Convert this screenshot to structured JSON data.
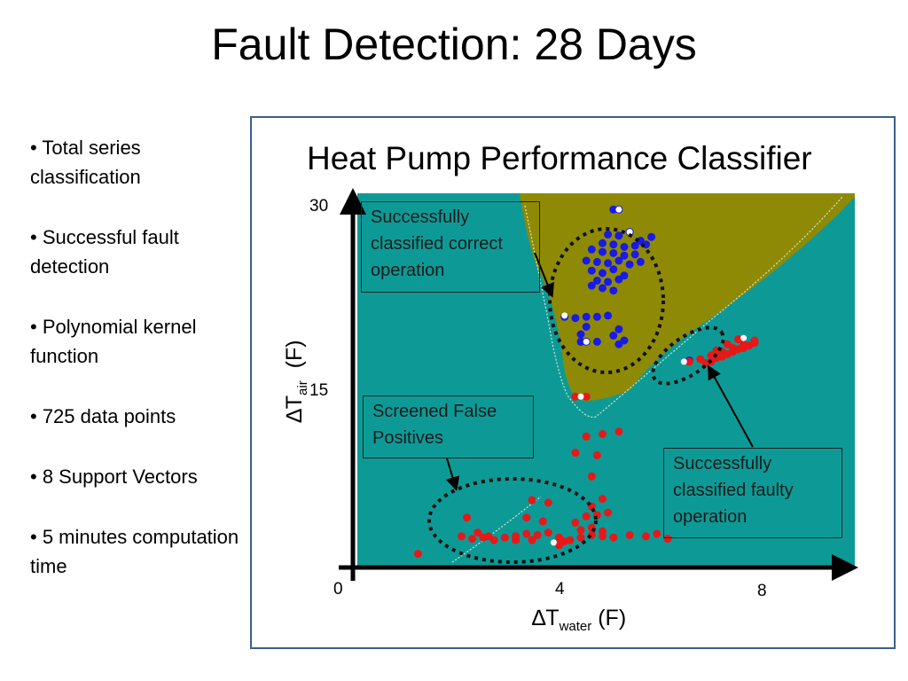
{
  "slide": {
    "title": "Fault Detection: 28 Days",
    "bullets": [
      "• Total series classification",
      "• Successful fault detection",
      "• Polynomial kernel function",
      "• 725 data points",
      "• 8 Support Vectors",
      "• 5 minutes computation time"
    ]
  },
  "colors": {
    "background_region": "#0d9a96",
    "correct_region": "#8e8a06",
    "correct_class": "#1a1ae6",
    "fault_class": "#e61818",
    "frame_border": "#3b5f8f"
  },
  "chart_data": {
    "type": "scatter",
    "title": "Heat Pump Performance Classifier",
    "xlabel": {
      "symbol": "∆T",
      "sub": "water",
      "unit": "(F)"
    },
    "ylabel": {
      "symbol": "∆T",
      "sub": "air",
      "unit": "(F)"
    },
    "xlim": [
      0,
      10
    ],
    "ylim": [
      0,
      30
    ],
    "x_ticks": [
      "0",
      "4",
      "8"
    ],
    "y_ticks": [
      "30",
      "15"
    ],
    "grid": false,
    "legend": "none",
    "series": [
      {
        "class": "correct",
        "points": [
          [
            4.8,
            28.7
          ],
          [
            4.9,
            28.7
          ],
          [
            4.7,
            26.7
          ],
          [
            4.9,
            26.6
          ],
          [
            5.1,
            26.9
          ],
          [
            5.3,
            26.2
          ],
          [
            5.5,
            26.5
          ],
          [
            4.6,
            26.0
          ],
          [
            4.8,
            25.9
          ],
          [
            5.0,
            25.7
          ],
          [
            5.2,
            25.8
          ],
          [
            5.4,
            25.9
          ],
          [
            4.4,
            25.5
          ],
          [
            4.6,
            25.3
          ],
          [
            4.8,
            25.2
          ],
          [
            5.0,
            25.0
          ],
          [
            5.2,
            25.1
          ],
          [
            4.3,
            24.6
          ],
          [
            4.5,
            24.5
          ],
          [
            4.7,
            24.4
          ],
          [
            4.9,
            24.6
          ],
          [
            5.1,
            24.3
          ],
          [
            5.3,
            24.5
          ],
          [
            4.4,
            23.8
          ],
          [
            4.6,
            23.6
          ],
          [
            4.8,
            23.9
          ],
          [
            5.0,
            23.4
          ],
          [
            4.5,
            23.0
          ],
          [
            4.7,
            22.9
          ],
          [
            4.9,
            23.1
          ],
          [
            4.6,
            22.4
          ],
          [
            4.8,
            22.2
          ],
          [
            4.4,
            22.6
          ],
          [
            3.9,
            20.1
          ],
          [
            4.1,
            20.0
          ],
          [
            4.3,
            20.1
          ],
          [
            4.5,
            20.1
          ],
          [
            4.7,
            20.2
          ],
          [
            4.3,
            19.3
          ],
          [
            4.2,
            18.7
          ],
          [
            4.2,
            18.1
          ],
          [
            4.3,
            18.1
          ],
          [
            4.5,
            18.1
          ],
          [
            4.8,
            18.6
          ],
          [
            5.0,
            18.2
          ],
          [
            4.9,
            17.9
          ],
          [
            4.9,
            19.1
          ],
          [
            6.2,
            16.6
          ]
        ]
      },
      {
        "class": "fault",
        "points": [
          [
            4.1,
            13.7
          ],
          [
            4.3,
            13.7
          ],
          [
            4.3,
            10.5
          ],
          [
            4.6,
            10.7
          ],
          [
            4.9,
            10.9
          ],
          [
            4.1,
            9.2
          ],
          [
            4.5,
            9.0
          ],
          [
            4.4,
            7.3
          ],
          [
            4.6,
            5.5
          ],
          [
            4.4,
            4.9
          ],
          [
            4.3,
            4.1
          ],
          [
            4.5,
            4.2
          ],
          [
            4.7,
            4.4
          ],
          [
            2.1,
            4.0
          ],
          [
            3.3,
            5.4
          ],
          [
            3.6,
            5.2
          ],
          [
            3.2,
            4.0
          ],
          [
            3.5,
            3.7
          ],
          [
            4.1,
            3.6
          ],
          [
            2.0,
            2.5
          ],
          [
            2.2,
            2.3
          ],
          [
            2.4,
            2.4
          ],
          [
            2.6,
            2.2
          ],
          [
            2.8,
            2.4
          ],
          [
            3.0,
            2.5
          ],
          [
            3.2,
            2.7
          ],
          [
            3.4,
            2.6
          ],
          [
            3.6,
            2.8
          ],
          [
            3.8,
            2.4
          ],
          [
            4.0,
            2.2
          ],
          [
            4.2,
            2.4
          ],
          [
            4.4,
            2.6
          ],
          [
            4.6,
            2.5
          ],
          [
            4.8,
            2.4
          ],
          [
            5.1,
            2.6
          ],
          [
            5.4,
            2.5
          ],
          [
            5.6,
            2.7
          ],
          [
            5.8,
            2.3
          ],
          [
            4.2,
            3.0
          ],
          [
            4.4,
            3.2
          ],
          [
            4.6,
            2.9
          ],
          [
            2.3,
            2.8
          ],
          [
            2.5,
            2.5
          ],
          [
            3.0,
            2.2
          ],
          [
            3.3,
            2.2
          ],
          [
            3.9,
            2.1
          ],
          [
            1.2,
            1.1
          ],
          [
            3.8,
            1.8
          ],
          [
            6.2,
            16.5
          ],
          [
            6.4,
            16.7
          ],
          [
            6.6,
            17.0
          ],
          [
            6.8,
            17.3
          ],
          [
            7.0,
            17.6
          ],
          [
            7.2,
            17.9
          ],
          [
            7.4,
            18.2
          ],
          [
            6.5,
            16.4
          ],
          [
            6.7,
            16.8
          ],
          [
            6.9,
            17.1
          ],
          [
            7.1,
            17.5
          ],
          [
            7.3,
            17.8
          ],
          [
            6.6,
            16.5
          ],
          [
            6.8,
            16.9
          ],
          [
            7.0,
            17.3
          ],
          [
            7.2,
            17.6
          ],
          [
            7.4,
            18.0
          ],
          [
            7.1,
            18.3
          ],
          [
            6.9,
            17.9
          ],
          [
            6.7,
            17.4
          ]
        ]
      }
    ],
    "support_vectors": [
      [
        3.9,
        20.2
      ],
      [
        6.1,
        16.5
      ],
      [
        7.2,
        18.4
      ],
      [
        4.2,
        13.7
      ],
      [
        3.7,
        2.0
      ],
      [
        5.1,
        26.9
      ],
      [
        4.3,
        18.1
      ],
      [
        4.9,
        28.7
      ]
    ],
    "annotations": [
      "Successfully classified correct operation",
      "Screened False Positives",
      "Successfully classified faulty operation"
    ]
  }
}
